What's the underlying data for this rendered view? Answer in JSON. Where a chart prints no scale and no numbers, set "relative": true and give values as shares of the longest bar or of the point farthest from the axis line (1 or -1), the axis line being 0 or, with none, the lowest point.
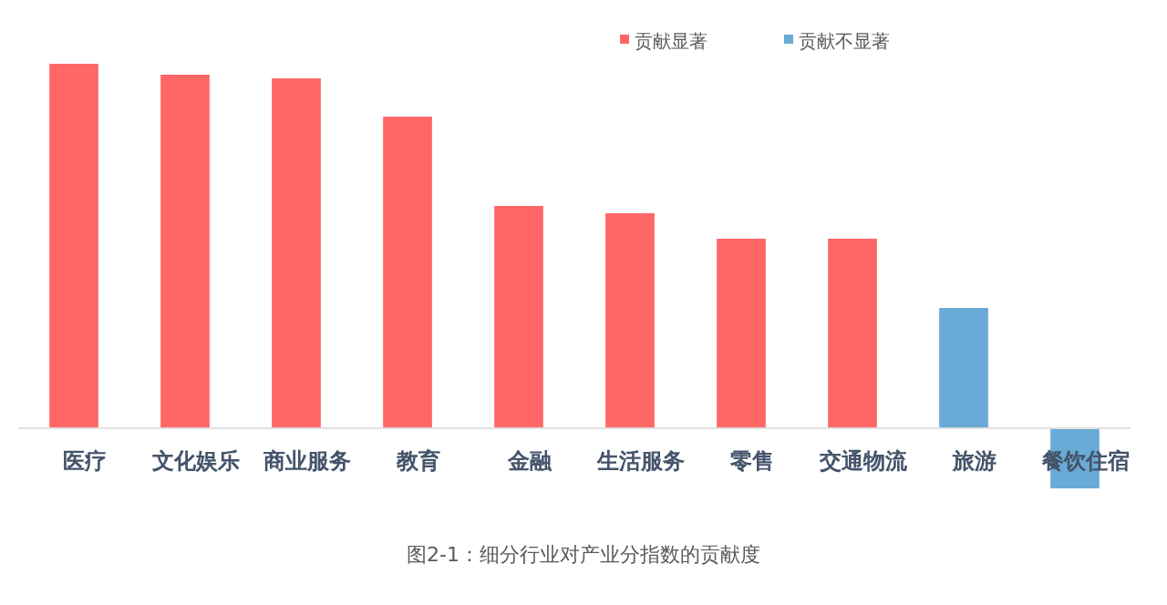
{
  "chart_data": {
    "type": "bar",
    "relative": true,
    "legend": "top right",
    "categories": [
      "医疗",
      "文化娱乐",
      "商业服务",
      "教育",
      "金融",
      "生活服务",
      "零售",
      "交通物流",
      "旅游",
      "餐饮住宿"
    ],
    "series": [
      {
        "name": "贡献显著",
        "color": "#ff6666",
        "values": [
          1,
          0.97,
          0.96,
          0.855,
          0.61,
          0.59,
          0.52,
          0.52,
          null,
          null
        ]
      },
      {
        "name": "贡献不显著",
        "color": "#6aaad6",
        "values": [
          null,
          null,
          null,
          null,
          null,
          null,
          null,
          null,
          0.33,
          -0.165
        ]
      }
    ],
    "annotations": [
      "图2-1：细分行业对产业分指数的贡献度"
    ]
  }
}
